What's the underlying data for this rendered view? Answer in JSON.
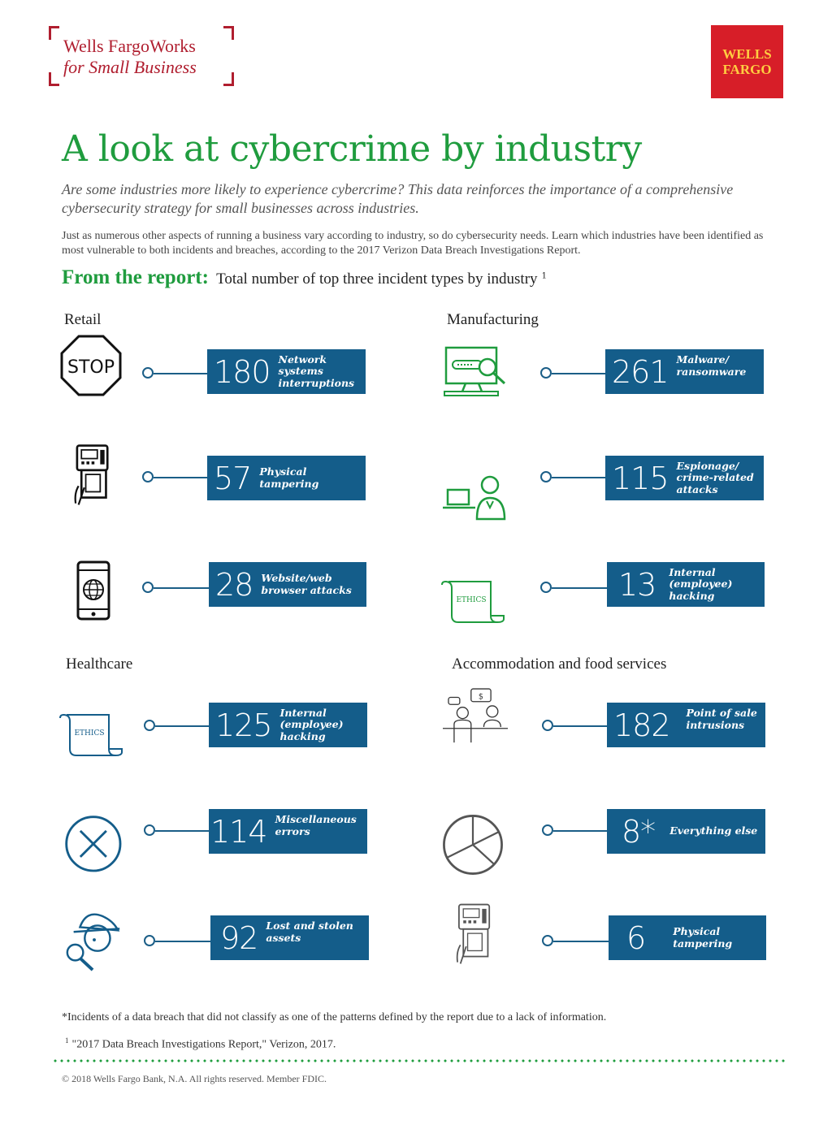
{
  "header": {
    "works_line1": "Wells FargoWorks",
    "works_line2": "for Small Business",
    "wf_line1": "WELLS",
    "wf_line2": "FARGO"
  },
  "title": "A look at cybercrime by industry",
  "subtitle": "Are some industries more likely to experience cybercrime? This data reinforces the importance of a comprehensive cybersecurity strategy for small businesses across industries.",
  "intro": "Just as numerous other aspects of running a business vary according to industry, so do cybersecurity needs. Learn which industries have been identified as most vulnerable to both incidents and breaches, according to the 2017 Verizon Data Breach Investigations Report.",
  "report": {
    "label": "From the report:",
    "description": "Total number of top three incident types by industry",
    "footnote_mark": "1"
  },
  "industries": [
    {
      "name": "Retail",
      "items": [
        {
          "icon": "stop-sign-icon",
          "value": "180",
          "label": [
            "Network",
            "systems",
            "interruptions"
          ]
        },
        {
          "icon": "card-terminal-icon",
          "value": "57",
          "label": [
            "Physical tampering"
          ]
        },
        {
          "icon": "smartphone-globe-icon",
          "value": "28",
          "label": [
            "Website/web",
            "browser attacks"
          ]
        }
      ]
    },
    {
      "name": "Manufacturing",
      "items": [
        {
          "icon": "computer-search-icon",
          "value": "261",
          "label": [
            "Malware/",
            "ransomware"
          ]
        },
        {
          "icon": "person-laptop-icon",
          "value": "115",
          "label": [
            "Espionage/",
            "crime-related",
            "attacks"
          ]
        },
        {
          "icon": "ethics-scroll-icon",
          "value": "13",
          "label": [
            "Internal",
            "(employee)",
            "hacking"
          ]
        }
      ]
    },
    {
      "name": "Healthcare",
      "items": [
        {
          "icon": "ethics-scroll-icon",
          "value": "125",
          "label": [
            "Internal",
            "(employee)",
            "hacking"
          ]
        },
        {
          "icon": "error-x-icon",
          "value": "114",
          "label": [
            "Miscellaneous",
            "errors"
          ]
        },
        {
          "icon": "detective-magnifier-icon",
          "value": "92",
          "label": [
            "Lost and stolen",
            "assets"
          ]
        }
      ]
    },
    {
      "name": "Accommodation and food services",
      "items": [
        {
          "icon": "point-of-sale-icon",
          "value": "182",
          "label": [
            "Point of sale",
            "intrusions"
          ]
        },
        {
          "icon": "pie-chart-icon",
          "value": "8*",
          "label": [
            "Everything else"
          ]
        },
        {
          "icon": "card-terminal-icon",
          "value": "6",
          "label": [
            "Physical",
            "tampering"
          ]
        }
      ]
    }
  ],
  "icon_text": {
    "stop": "STOP",
    "ethics": "ETHICS",
    "dollar": "$"
  },
  "colors": {
    "green": "#1f9c3e",
    "blue": "#145d8a",
    "red": "#d71e28",
    "gold": "#ffcd41",
    "works_red": "#b01e2f"
  },
  "footnotes": {
    "asterisk": "*Incidents of a data breach that did not classify as one of the patterns defined by the report due to a lack of information.",
    "source_mark": "1",
    "source": "\"2017 Data Breach Investigations Report,\" Verizon, 2017."
  },
  "copyright": "© 2018 Wells Fargo Bank, N.A. All rights reserved. Member FDIC."
}
